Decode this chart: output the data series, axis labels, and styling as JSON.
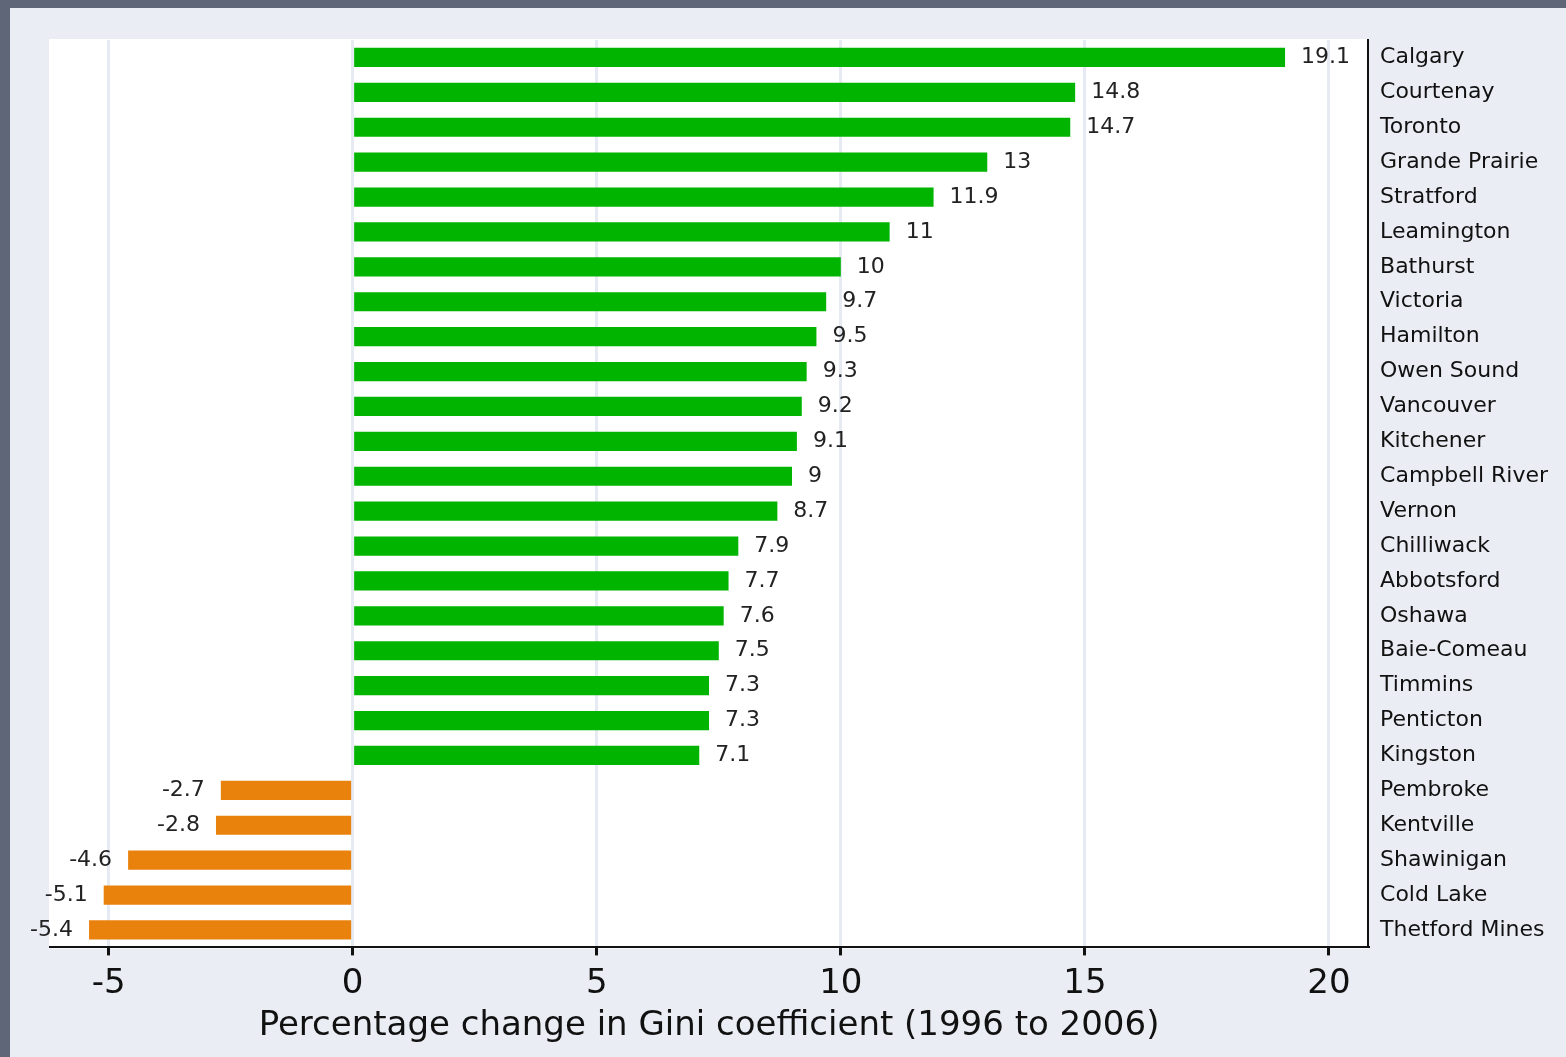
{
  "chart_data": {
    "type": "bar",
    "orientation": "horizontal",
    "xlabel": "Percentage change in Gini coefficient (1996 to 2006)",
    "categories": [
      "Calgary",
      "Courtenay",
      "Toronto",
      "Grande Prairie",
      "Stratford",
      "Leamington",
      "Bathurst",
      "Victoria",
      "Hamilton",
      "Owen Sound",
      "Vancouver",
      "Kitchener",
      "Campbell River",
      "Vernon",
      "Chilliwack",
      "Abbotsford",
      "Oshawa",
      "Baie-Comeau",
      "Timmins",
      "Penticton",
      "Kingston",
      "Pembroke",
      "Kentville",
      "Shawinigan",
      "Cold Lake",
      "Thetford Mines"
    ],
    "values": [
      19.1,
      14.8,
      14.7,
      13,
      11.9,
      11,
      10,
      9.7,
      9.5,
      9.3,
      9.2,
      9.1,
      9,
      8.7,
      7.9,
      7.7,
      7.6,
      7.5,
      7.3,
      7.3,
      7.1,
      -2.7,
      -2.8,
      -4.6,
      -5.1,
      -5.4
    ],
    "colors": [
      "#00b400",
      "#00b400",
      "#00b400",
      "#00b400",
      "#00b400",
      "#00b400",
      "#00b400",
      "#00b400",
      "#00b400",
      "#00b400",
      "#00b400",
      "#00b400",
      "#00b400",
      "#00b400",
      "#00b400",
      "#00b400",
      "#00b400",
      "#00b400",
      "#00b400",
      "#00b400",
      "#00b400",
      "#e8820c",
      "#e8820c",
      "#e8820c",
      "#e8820c",
      "#e8820c"
    ],
    "xlim": [
      -6.2,
      20.8
    ],
    "xticks": [
      -5,
      0,
      5,
      10,
      15,
      20
    ],
    "grid": "x",
    "data_labels": true
  }
}
